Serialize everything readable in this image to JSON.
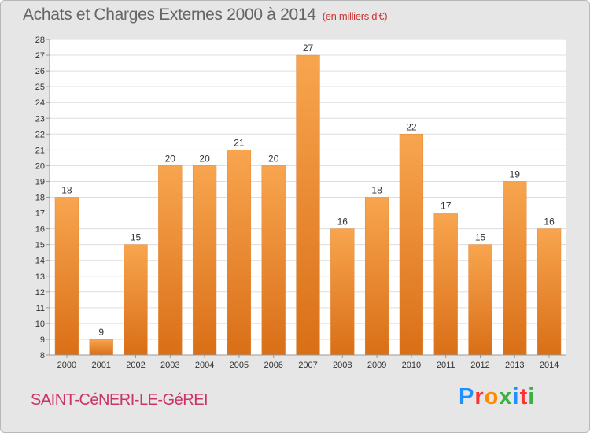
{
  "title": "Achats et Charges Externes 2000 à 2014",
  "unit": "(en milliers d'€)",
  "commune": "SAINT-CéNERI-LE-GéREI",
  "logo": {
    "text": "Proxiti",
    "letters": [
      "P",
      "r",
      "o",
      "x",
      "i",
      "t",
      "i"
    ],
    "colors": [
      "#1e90ff",
      "#ff3030",
      "#ff8c00",
      "#3cb043",
      "#1e90ff",
      "#ff3030",
      "#3cb043"
    ]
  },
  "colors": {
    "bar_top": "#f8a54f",
    "bar_bottom": "#d96f17",
    "plot_bg": "#ffffff",
    "grid": "#dddddd",
    "axis_text": "#333333",
    "title_text": "#666666",
    "unit_text": "#cc3333",
    "commune_text": "#cc3366"
  },
  "chart_data": {
    "type": "bar",
    "categories": [
      "2000",
      "2001",
      "2002",
      "2003",
      "2004",
      "2005",
      "2006",
      "2007",
      "2008",
      "2009",
      "2010",
      "2011",
      "2012",
      "2013",
      "2014"
    ],
    "values": [
      18,
      9,
      15,
      20,
      20,
      21,
      20,
      27,
      16,
      18,
      22,
      17,
      15,
      19,
      16
    ],
    "ylim": [
      8,
      28
    ],
    "yticks": [
      8,
      9,
      10,
      11,
      12,
      13,
      14,
      15,
      16,
      17,
      18,
      19,
      20,
      21,
      22,
      23,
      24,
      25,
      26,
      27,
      28
    ],
    "grid": true,
    "xlabel": "",
    "ylabel": ""
  }
}
